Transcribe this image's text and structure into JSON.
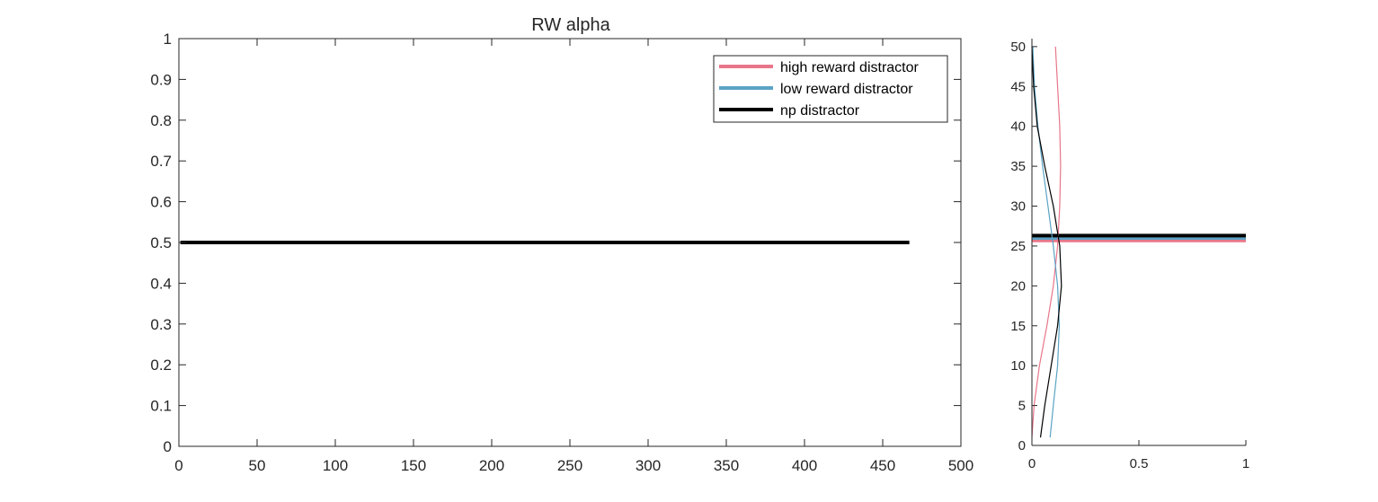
{
  "chart_data": [
    {
      "type": "line",
      "title": "RW  alpha",
      "xlabel": "",
      "ylabel": "",
      "xlim": [
        0,
        500
      ],
      "ylim": [
        0,
        1
      ],
      "xticks": [
        0,
        50,
        100,
        150,
        200,
        250,
        300,
        350,
        400,
        450,
        500
      ],
      "yticks": [
        0,
        0.1,
        0.2,
        0.3,
        0.4,
        0.5,
        0.6,
        0.7,
        0.8,
        0.9,
        1
      ],
      "grid": false,
      "legend_position": "top-right",
      "series": [
        {
          "name": "high reward distractor",
          "color": "#E8768A",
          "x": [
            1,
            467
          ],
          "y": [
            0.5,
            0.5
          ]
        },
        {
          "name": "low reward distractor",
          "color": "#5BA3C4",
          "x": [
            1,
            467
          ],
          "y": [
            0.5,
            0.5
          ]
        },
        {
          "name": "np distractor",
          "color": "#000000",
          "x": [
            1,
            467
          ],
          "y": [
            0.5,
            0.5
          ]
        }
      ]
    },
    {
      "type": "line",
      "title": "",
      "xlim": [
        0,
        1
      ],
      "ylim": [
        0,
        51
      ],
      "xticks": [
        0,
        0.5,
        1
      ],
      "yticks": [
        0,
        5,
        10,
        15,
        20,
        25,
        30,
        35,
        40,
        45,
        50
      ],
      "grid": false,
      "hlines": [
        {
          "name": "high reward distractor",
          "color": "#E8768A",
          "y": 25.7
        },
        {
          "name": "low reward distractor",
          "color": "#5BA3C4",
          "y": 26.0
        },
        {
          "name": "np distractor",
          "color": "#000000",
          "y": 26.3
        }
      ],
      "series": [
        {
          "name": "high reward distractor",
          "color": "#E8768A",
          "y": [
            1,
            5,
            10,
            15,
            20,
            25,
            30,
            35,
            40,
            45,
            50
          ],
          "x": [
            0.0,
            0.01,
            0.035,
            0.07,
            0.1,
            0.12,
            0.13,
            0.134,
            0.13,
            0.12,
            0.11
          ]
        },
        {
          "name": "low reward distractor",
          "color": "#5BA3C4",
          "y": [
            1,
            5,
            10,
            15,
            20,
            25,
            30,
            35,
            40,
            45,
            50
          ],
          "x": [
            0.085,
            0.1,
            0.12,
            0.128,
            0.12,
            0.1,
            0.075,
            0.05,
            0.028,
            0.012,
            0.004
          ]
        },
        {
          "name": "np distractor",
          "color": "#000000",
          "y": [
            1,
            5,
            10,
            15,
            20,
            25,
            30,
            35,
            40,
            45,
            50
          ],
          "x": [
            0.04,
            0.06,
            0.09,
            0.12,
            0.138,
            0.13,
            0.1,
            0.06,
            0.025,
            0.008,
            0.0
          ]
        }
      ]
    }
  ]
}
